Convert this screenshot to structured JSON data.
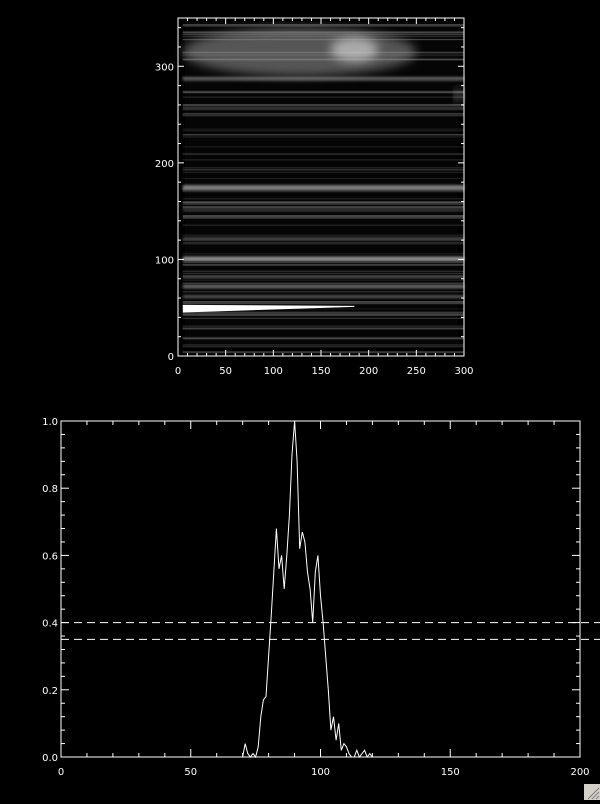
{
  "chart_data": [
    {
      "type": "heatmap",
      "xlim": [
        0,
        300
      ],
      "ylim": [
        0,
        350
      ],
      "xticks": [
        "0",
        "50",
        "100",
        "150",
        "200",
        "250",
        "300"
      ],
      "yticks": [
        "0",
        "100",
        "200",
        "300"
      ],
      "colormap": "grayscale",
      "background": "#000000",
      "axis_color": "#ffffff",
      "bright_features": [
        {
          "kind": "streak",
          "x": [
            5,
            185
          ],
          "y": [
            45,
            53
          ],
          "intensity": 1.0
        },
        {
          "kind": "streak",
          "x": [
            5,
            300
          ],
          "y": [
            98,
            103
          ],
          "intensity": 0.55
        },
        {
          "kind": "streak",
          "x": [
            5,
            300
          ],
          "y": [
            172,
            177
          ],
          "intensity": 0.5
        },
        {
          "kind": "streak",
          "x": [
            5,
            300
          ],
          "y": [
            70,
            74
          ],
          "intensity": 0.4
        },
        {
          "kind": "streak",
          "x": [
            5,
            300
          ],
          "y": [
            60,
            63
          ],
          "intensity": 0.35
        },
        {
          "kind": "streak",
          "x": [
            5,
            300
          ],
          "y": [
            120,
            123
          ],
          "intensity": 0.3
        },
        {
          "kind": "streak",
          "x": [
            5,
            300
          ],
          "y": [
            150,
            152
          ],
          "intensity": 0.3
        },
        {
          "kind": "streak",
          "x": [
            5,
            300
          ],
          "y": [
            285,
            289
          ],
          "intensity": 0.35
        },
        {
          "kind": "blob",
          "x": [
            5,
            250
          ],
          "y": [
            290,
            340
          ],
          "intensity": 0.6
        },
        {
          "kind": "blob",
          "x": [
            160,
            210
          ],
          "y": [
            305,
            330
          ],
          "intensity": 0.95
        },
        {
          "kind": "blob",
          "x": [
            290,
            300
          ],
          "y": [
            265,
            275
          ],
          "intensity": 0.8
        }
      ]
    },
    {
      "type": "line",
      "xlim": [
        0,
        200
      ],
      "ylim": [
        0,
        1.0
      ],
      "xticks": [
        "0",
        "50",
        "100",
        "150",
        "200"
      ],
      "yticks": [
        "0.0",
        "0.2",
        "0.4",
        "0.6",
        "0.8",
        "1.0"
      ],
      "line_color": "#ffffff",
      "series": [
        {
          "x": [
            0,
            70,
            71,
            72,
            73,
            74,
            75,
            76,
            77,
            78,
            79,
            80,
            81,
            82,
            83,
            84,
            85,
            86,
            87,
            88,
            89,
            90,
            91,
            92,
            93,
            94,
            95,
            96,
            97,
            98,
            99,
            100,
            101,
            102,
            103,
            104,
            105,
            106,
            107,
            108,
            109,
            110,
            111,
            112,
            113,
            114,
            115,
            116,
            117,
            118,
            119,
            120,
            200
          ],
          "y": [
            0,
            0,
            0.04,
            0.01,
            0.0,
            0.01,
            0.0,
            0.03,
            0.12,
            0.17,
            0.18,
            0.3,
            0.42,
            0.55,
            0.68,
            0.56,
            0.6,
            0.5,
            0.6,
            0.72,
            0.9,
            1.0,
            0.88,
            0.62,
            0.67,
            0.64,
            0.55,
            0.5,
            0.4,
            0.55,
            0.6,
            0.48,
            0.4,
            0.3,
            0.2,
            0.08,
            0.12,
            0.05,
            0.1,
            0.02,
            0.04,
            0.03,
            0.01,
            0.0,
            0.0,
            0.02,
            0.0,
            0.01,
            0.02,
            0.0,
            0.01,
            0.0,
            0.0
          ]
        }
      ],
      "hlines": [
        {
          "y": 0.4,
          "style": "dashed"
        },
        {
          "y": 0.35,
          "style": "dashed"
        }
      ]
    }
  ]
}
